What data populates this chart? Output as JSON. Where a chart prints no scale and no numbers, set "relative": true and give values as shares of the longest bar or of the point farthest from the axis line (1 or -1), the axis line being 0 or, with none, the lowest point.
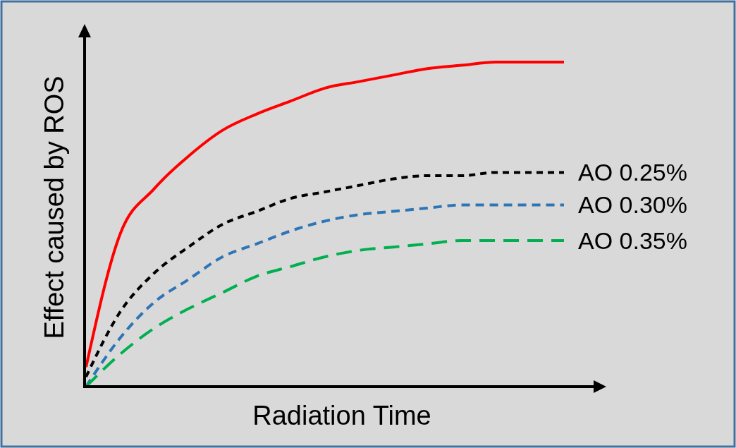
{
  "chart_data": {
    "type": "line",
    "relative": true,
    "xlabel": "Radiation Time",
    "ylabel": "Effect caused by ROS",
    "categories": [
      null,
      null,
      null,
      null,
      null,
      null,
      null,
      null,
      null,
      null,
      null,
      null,
      null,
      null,
      null
    ],
    "series": [
      {
        "color": "#ff0000",
        "line_style": "solid",
        "values": [
          0.06,
          0.47,
          0.61,
          0.71,
          0.79,
          0.84,
          0.88,
          0.92,
          0.94,
          0.96,
          0.98,
          0.99,
          1.0,
          1.0,
          1.0
        ]
      },
      {
        "name": "AO 0.25%",
        "color": "#000000",
        "line_style": "dotted",
        "values": [
          0.03,
          0.23,
          0.35,
          0.43,
          0.5,
          0.54,
          0.58,
          0.6,
          0.62,
          0.64,
          0.65,
          0.65,
          0.66,
          0.66,
          0.66
        ]
      },
      {
        "name": "AO 0.30%",
        "color": "#2e75b6",
        "line_style": "dashed",
        "values": [
          0.0,
          0.15,
          0.26,
          0.33,
          0.4,
          0.44,
          0.48,
          0.51,
          0.53,
          0.54,
          0.55,
          0.56,
          0.56,
          0.56,
          0.56
        ]
      },
      {
        "name": "AO 0.35%",
        "color": "#00b050",
        "line_style": "longdash",
        "values": [
          0.0,
          0.1,
          0.18,
          0.24,
          0.29,
          0.34,
          0.37,
          0.4,
          0.42,
          0.43,
          0.44,
          0.45,
          0.45,
          0.45,
          0.45
        ]
      }
    ]
  }
}
